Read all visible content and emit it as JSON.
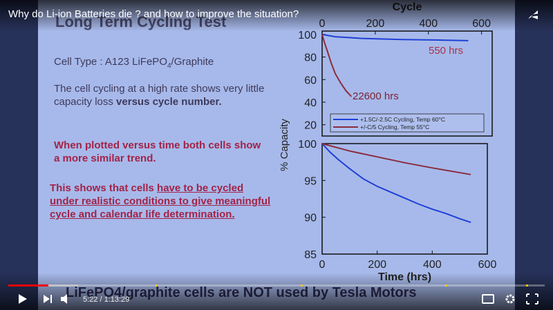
{
  "video": {
    "title": "Why do Li-ion Batteries die ? and how to improve the situation?",
    "time": "5:22 / 1:13:29"
  },
  "slide": {
    "title": "Long Term Cycling Test",
    "cell_type": [
      "Cell Type  : A123 LiFePO",
      "4",
      "/Graphite"
    ],
    "paragraph_1": [
      "The cell cycling at a high rate shows very little capacity loss ",
      "versus cycle number."
    ],
    "paragraph_2": "When plotted versus time both cells show a more similar trend.",
    "paragraph_3": [
      "This shows that cells ",
      "have to be cycled under realistic conditions to give meaningful cycle and calendar life determination."
    ],
    "footer": "LiFePO4/graphite cells are NOT used by Tesla Motors"
  },
  "chart_data": [
    {
      "type": "line",
      "xlabel": "Cycle",
      "ylabel": "% Capacity",
      "xlim": [
        0,
        640
      ],
      "xticks": [
        0,
        200,
        400,
        600
      ],
      "ylim": [
        10,
        103
      ],
      "yticks": [
        20,
        40,
        60,
        80,
        100
      ],
      "series": [
        {
          "name": "+1.5C/-2.5C Cycling, Temp 60°C",
          "color": "#1f3fd6",
          "x": [
            0,
            50,
            150,
            300,
            450,
            550
          ],
          "values": [
            100,
            98,
            96.5,
            95.5,
            95,
            94.5
          ]
        },
        {
          "name": "+/-C/5 Cycling, Temp 55°C",
          "color": "#8a2c3c",
          "x": [
            0,
            10,
            20,
            35,
            50,
            70,
            90,
            110
          ],
          "values": [
            100,
            92,
            85,
            74,
            65,
            57,
            50,
            45
          ]
        }
      ],
      "annotations": [
        "550 hrs",
        "22600 hrs"
      ]
    },
    {
      "type": "line",
      "xlabel": "Time (hrs)",
      "xlim": [
        0,
        600
      ],
      "xticks": [
        0,
        200,
        400,
        600
      ],
      "ylim": [
        85,
        100
      ],
      "yticks": [
        85,
        90,
        95,
        100
      ],
      "series": [
        {
          "color": "#1f3fd6",
          "x": [
            0,
            30,
            60,
            100,
            150,
            200,
            250,
            300,
            350,
            400,
            450,
            500,
            540
          ],
          "values": [
            100,
            98.8,
            97.8,
            96.6,
            95.2,
            94.2,
            93.4,
            92.6,
            91.8,
            91.1,
            90.5,
            89.8,
            89.3
          ]
        },
        {
          "color": "#8a2c3c",
          "x": [
            0,
            100,
            200,
            300,
            400,
            540
          ],
          "values": [
            100,
            99,
            98.2,
            97.4,
            96.7,
            95.8
          ]
        }
      ]
    }
  ]
}
